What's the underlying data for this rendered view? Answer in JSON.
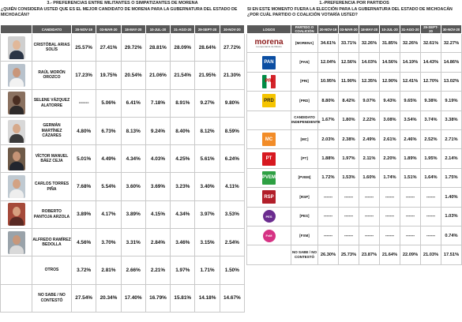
{
  "left": {
    "title": "3.- PREFERENCIAS ENTRE MILITANTES O SIMPATIZANTES DE MORENA",
    "question": "¿QUIÉN CONSIDERA USTED QUE ES EL MEJOR CANDIDATO DE MORENA PARA LA GUBERNATURA DEL ESTADO DE MICHOACÁN?",
    "columns": [
      "CANDIDATO",
      "20-NOV-19",
      "03-MAR-20",
      "18-MAY-20",
      "10-JUL-20",
      "31-AGO-20",
      "29-SEPT-20",
      "30-NOV-20"
    ],
    "rows": [
      {
        "name": "CRISTÓBAL ARIAS SOLÍS",
        "values": [
          "25.57%",
          "27.41%",
          "29.72%",
          "28.81%",
          "28.09%",
          "28.64%",
          "27.72%"
        ],
        "photo_colors": [
          "#cfcfcf",
          "#e1b89a",
          "#2b3546"
        ]
      },
      {
        "name": "RAÚL MORÓN OROZCO",
        "values": [
          "17.23%",
          "19.75%",
          "20.54%",
          "21.06%",
          "21.54%",
          "21.95%",
          "21.30%"
        ],
        "photo_colors": [
          "#b8c2cc",
          "#c9967a",
          "#f2f2f2"
        ]
      },
      {
        "name": "SELENE VÁZQUEZ ALATORRE",
        "values": [
          "------",
          "5.06%",
          "6.41%",
          "7.18%",
          "8.91%",
          "9.27%",
          "9.80%"
        ],
        "photo_colors": [
          "#8a7160",
          "#4a2e22",
          "#2e2a2a"
        ]
      },
      {
        "name": "GERMÁN MARTÍNEZ CÁZARES",
        "values": [
          "4.80%",
          "6.73%",
          "8.13%",
          "9.24%",
          "8.40%",
          "8.12%",
          "8.59%"
        ],
        "photo_colors": [
          "#d8d8d8",
          "#d6a98a",
          "#3a3a3a"
        ]
      },
      {
        "name": "VÍCTOR MANUEL BÁEZ CEJA",
        "values": [
          "5.01%",
          "4.49%",
          "4.34%",
          "4.03%",
          "4.25%",
          "5.61%",
          "6.24%"
        ],
        "photo_colors": [
          "#6e5a48",
          "#c59476",
          "#22262e"
        ]
      },
      {
        "name": "CARLOS TORRES PIÑA",
        "values": [
          "7.68%",
          "5.54%",
          "3.60%",
          "3.69%",
          "3.23%",
          "3.40%",
          "4.11%"
        ],
        "photo_colors": [
          "#bfc9d1",
          "#d3a283",
          "#eeeeee"
        ]
      },
      {
        "name": "ROBERTO PANTOJA ARZOLA",
        "values": [
          "3.89%",
          "4.17%",
          "3.89%",
          "4.15%",
          "4.34%",
          "3.97%",
          "3.53%"
        ],
        "photo_colors": [
          "#a54a3a",
          "#d7a080",
          "#5a2a24"
        ]
      },
      {
        "name": "ALFREDO RAMÍREZ BEDOLLA",
        "values": [
          "4.56%",
          "3.70%",
          "3.31%",
          "2.84%",
          "3.46%",
          "3.15%",
          "2.54%"
        ],
        "photo_colors": [
          "#9aa3aa",
          "#c8977a",
          "#d9d9d9"
        ]
      },
      {
        "name": "OTROS",
        "values": [
          "3.72%",
          "2.81%",
          "2.66%",
          "2.21%",
          "1.97%",
          "1.71%",
          "1.50%"
        ]
      },
      {
        "name": "NO SABE / NO CONTESTÓ",
        "values": [
          "27.54%",
          "20.34%",
          "17.40%",
          "16.79%",
          "15.81%",
          "14.18%",
          "14.67%"
        ]
      }
    ]
  },
  "right": {
    "title": "1.-PREFERENCIA POR PARTIDOS",
    "question": "SI EN ESTE MOMENTO FUERA LA ELECCIÓN PARA LA GUBERNATURA DEL ESTADO DE MICHOACÁN ¿POR CUÁL PARTIDO O COALICIÓN VOTARÍA USTED?",
    "columns": [
      "LOGOS",
      "PARTIDO O COALICIÓN",
      "20-NOV-19",
      "03-MAR-20",
      "18-MAY-20",
      "10-JUL-20",
      "31-AGO-20",
      "29-SEPT-20",
      "30-NOV-20"
    ],
    "rows": [
      {
        "logo": "morena",
        "logo_text": "morena",
        "logo_sub": "La esperanza de México",
        "party": "[MORENA]",
        "values": [
          "34.61%",
          "33.71%",
          "32.26%",
          "31.85%",
          "32.26%",
          "32.61%",
          "32.27%"
        ]
      },
      {
        "logo": "pan",
        "logo_text": "PAN",
        "party": "[PAN]",
        "values": [
          "12.04%",
          "12.56%",
          "14.03%",
          "14.56%",
          "14.19%",
          "14.43%",
          "14.86%"
        ]
      },
      {
        "logo": "pri",
        "logo_text": "PRI",
        "party": "[PRI]",
        "values": [
          "10.95%",
          "11.90%",
          "12.35%",
          "12.90%",
          "12.41%",
          "12.70%",
          "13.02%"
        ]
      },
      {
        "logo": "prd",
        "logo_text": "PRD",
        "party": "[PRD]",
        "values": [
          "8.80%",
          "8.42%",
          "9.07%",
          "9.43%",
          "9.65%",
          "9.38%",
          "9.19%"
        ]
      },
      {
        "logo": "none",
        "party": "CANDIDATO INDEPENDIENTE",
        "values": [
          "1.67%",
          "1.80%",
          "2.22%",
          "3.08%",
          "3.54%",
          "3.74%",
          "3.38%"
        ]
      },
      {
        "logo": "mc",
        "logo_text": "MC",
        "party": "[MC]",
        "values": [
          "2.03%",
          "2.38%",
          "2.49%",
          "2.61%",
          "2.46%",
          "2.52%",
          "2.71%"
        ]
      },
      {
        "logo": "pt",
        "logo_text": "PT",
        "party": "[PT]",
        "values": [
          "1.88%",
          "1.97%",
          "2.11%",
          "2.20%",
          "1.89%",
          "1.95%",
          "2.14%"
        ]
      },
      {
        "logo": "pvem",
        "logo_text": "PVEM",
        "party": "[PVEM]",
        "values": [
          "1.72%",
          "1.53%",
          "1.60%",
          "1.74%",
          "1.51%",
          "1.64%",
          "1.75%"
        ]
      },
      {
        "logo": "rsp",
        "logo_text": "RSP",
        "party": "[RSP]",
        "values": [
          "------",
          "------",
          "------",
          "------",
          "------",
          "------",
          "1.40%"
        ]
      },
      {
        "logo": "pes",
        "logo_text": "PES",
        "party": "[PES]",
        "values": [
          "------",
          "------",
          "------",
          "------",
          "------",
          "------",
          "1.03%"
        ]
      },
      {
        "logo": "fxm",
        "logo_text": "FxM",
        "party": "[FXM]",
        "values": [
          "------",
          "------",
          "------",
          "------",
          "------",
          "------",
          "0.74%"
        ]
      },
      {
        "logo": "none",
        "party": "NO SABE / NO CONTESTÓ",
        "values": [
          "26.30%",
          "25.73%",
          "23.87%",
          "21.64%",
          "22.09%",
          "21.03%",
          "17.51%"
        ]
      }
    ]
  },
  "colors": {
    "header_bg": "#595959",
    "morena": "#8b1a1a",
    "pan": "#0b4ea2",
    "pri_green": "#008b45",
    "pri_red": "#d3242b",
    "prd": "#f5c400",
    "mc": "#f28c28",
    "pt": "#d71920",
    "pvem": "#2ea043",
    "rsp": "#b21f2a",
    "pes": "#6b2c8f",
    "fxm": "#d63384"
  }
}
